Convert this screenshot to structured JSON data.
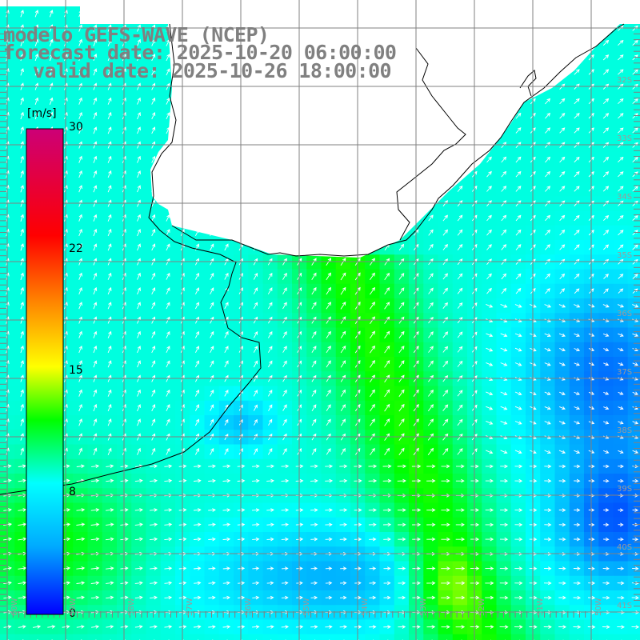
{
  "title": {
    "model": "modelo GEFS-WAVE (NCEP)",
    "forecast": "forecast date: 2025-10-20 06:00:00",
    "valid": "valid date: 2025-10-26 18:00:00"
  },
  "colorbar": {
    "unit": "[m/s]",
    "ticks": [
      {
        "label": "30",
        "value": 30
      },
      {
        "label": "22",
        "value": 22
      },
      {
        "label": "15",
        "value": 15
      },
      {
        "label": "8",
        "value": 8
      },
      {
        "label": "0",
        "value": 0
      }
    ],
    "range": [
      0,
      30
    ],
    "colors": [
      "#0000ff",
      "#00aaff",
      "#00ffff",
      "#00ff00",
      "#ffff00",
      "#ff8800",
      "#ff0000",
      "#cc0077"
    ]
  },
  "lat_labels": [
    "32S",
    "33S",
    "34S",
    "35S",
    "36S",
    "37S",
    "38S",
    "39S",
    "40S",
    "41S"
  ],
  "lon_labels": [
    "60W",
    "59W",
    "58W",
    "57W",
    "56W",
    "55W",
    "54W",
    "53W",
    "52W",
    "51W",
    "50W"
  ],
  "colors": {
    "land": "#ffffff",
    "coast": "#000000",
    "grid": "#808080",
    "arrow": "#ffffff",
    "label_gray": "#808080",
    "lat_lon_label": "#9a9a9a"
  }
}
